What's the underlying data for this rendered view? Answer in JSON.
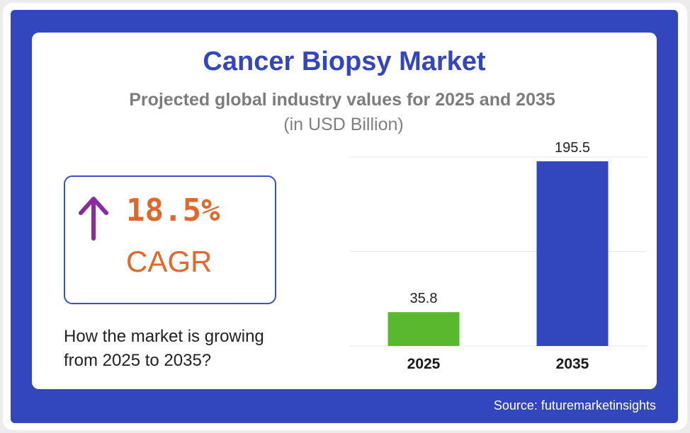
{
  "title": "Cancer Biopsy Market",
  "subtitle": "Projected global industry values for 2025 and 2035",
  "unit_label": "(in USD Billion)",
  "cagr": {
    "value": "18.5%",
    "label": "CAGR",
    "arrow_icon": "up-arrow-icon",
    "arrow_color": "#8a2ba0",
    "text_color": "#e0692a"
  },
  "question": "How the market is growing from 2025 to 2035?",
  "source": "Source: futuremarketinsights",
  "colors": {
    "frame": "#3246bd",
    "title": "#3346bb"
  },
  "chart_data": {
    "type": "bar",
    "categories": [
      "2025",
      "2035"
    ],
    "values": [
      35.8,
      195.5
    ],
    "data_labels": [
      "35.8",
      "195.5"
    ],
    "colors": [
      "#5ab82e",
      "#3246bd"
    ],
    "title": "Cancer Biopsy Market",
    "subtitle": "Projected global industry values for 2025 and 2035",
    "ylabel": "",
    "xlabel": "",
    "ylim": [
      0,
      200
    ],
    "grid": true,
    "legend": "none"
  }
}
